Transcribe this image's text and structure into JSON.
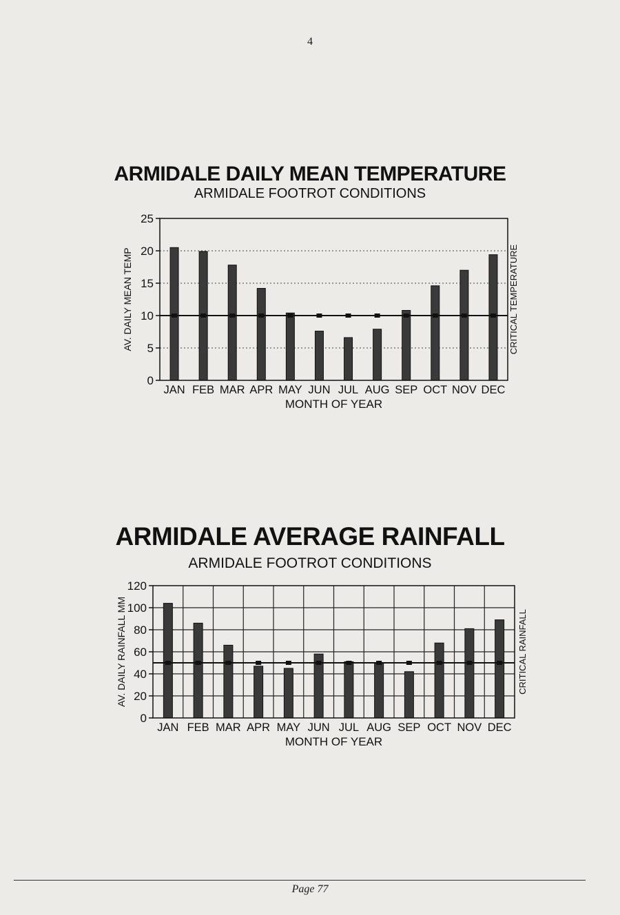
{
  "page": {
    "top_number": "4",
    "footer": "Page 77"
  },
  "chart_data": [
    {
      "type": "bar",
      "title": "ARMIDALE DAILY MEAN TEMPERATURE",
      "subtitle": "ARMIDALE FOOTROT CONDITIONS",
      "xlabel": "MONTH OF YEAR",
      "ylabel": "AV. DAILY MEAN TEMP",
      "y2label": "CRITICAL TEMPERATURE",
      "categories": [
        "JAN",
        "FEB",
        "MAR",
        "APR",
        "MAY",
        "JUN",
        "JUL",
        "AUG",
        "SEP",
        "OCT",
        "NOV",
        "DEC"
      ],
      "values": [
        20.5,
        19.9,
        17.8,
        14.2,
        10.4,
        7.6,
        6.6,
        7.9,
        10.8,
        14.6,
        17.0,
        19.4
      ],
      "critical_value": 10,
      "ylim": [
        0,
        25
      ],
      "yticks": [
        0,
        5,
        10,
        15,
        20,
        25
      ],
      "grid": "horizontal dotted",
      "bar_color": "#3a3a3a"
    },
    {
      "type": "bar",
      "title": "ARMIDALE AVERAGE RAINFALL",
      "subtitle": "ARMIDALE FOOTROT CONDITIONS",
      "xlabel": "MONTH OF YEAR",
      "ylabel": "AV. DAILY RAINFALL MM",
      "y2label": "CRITICAL RAINFALL",
      "categories": [
        "JAN",
        "FEB",
        "MAR",
        "APR",
        "MAY",
        "JUN",
        "JUL",
        "AUG",
        "SEP",
        "OCT",
        "NOV",
        "DEC"
      ],
      "values": [
        104,
        86,
        66,
        47,
        45,
        58,
        51,
        50,
        42,
        68,
        81,
        89
      ],
      "critical_value": 50,
      "ylim": [
        0,
        120
      ],
      "yticks": [
        0,
        20,
        40,
        60,
        80,
        100,
        120
      ],
      "grid": "full",
      "bar_color": "#3a3a3a"
    }
  ]
}
